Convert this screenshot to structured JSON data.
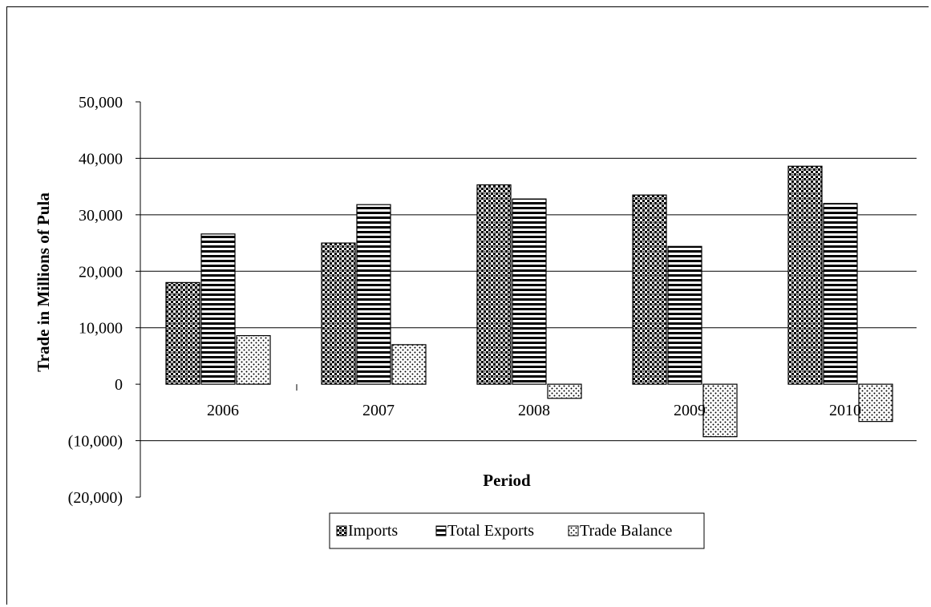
{
  "chart_data": {
    "type": "bar",
    "title": "",
    "xlabel": "Period",
    "ylabel": "Trade in Millions of Pula",
    "categories": [
      "2006",
      "2007",
      "2008",
      "2009",
      "2010"
    ],
    "series": [
      {
        "name": "Imports",
        "values": [
          18000,
          25000,
          35300,
          33500,
          38600
        ],
        "pattern": "checker"
      },
      {
        "name": "Total Exports",
        "values": [
          26600,
          31800,
          32800,
          24400,
          32000
        ],
        "pattern": "horizontal-lines"
      },
      {
        "name": "Trade Balance",
        "values": [
          8600,
          7000,
          -2500,
          -9300,
          -6600
        ],
        "pattern": "dots"
      }
    ],
    "ylim": [
      -20000,
      50000
    ],
    "yticks": [
      -20000,
      -10000,
      0,
      10000,
      20000,
      30000,
      40000,
      50000
    ],
    "ytick_labels": [
      "(20,000)",
      "(10,000)",
      "0",
      "10,000",
      "20,000",
      "30,000",
      "40,000",
      "50,000"
    ],
    "gridlines": [
      -10000,
      10000,
      20000,
      30000,
      40000
    ],
    "grid": true,
    "legend_position": "bottom"
  }
}
